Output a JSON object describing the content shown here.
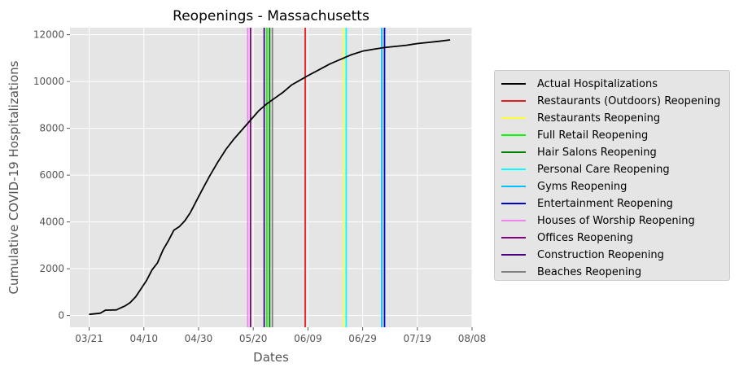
{
  "chart_data": {
    "type": "line",
    "title": "Reopenings - Massachusetts",
    "xlabel": "Dates",
    "ylabel": "Cumulative COVID-19 Hospitalizations",
    "x_ticks": [
      "03/21",
      "04/10",
      "04/30",
      "05/20",
      "06/09",
      "06/29",
      "07/19",
      "08/08"
    ],
    "x_range": [
      "2020-03-14",
      "2020-08-08"
    ],
    "y_ticks": [
      0,
      2000,
      4000,
      6000,
      8000,
      10000,
      12000
    ],
    "ylim": [
      -500,
      12300
    ],
    "grid": true,
    "legend_position": "right",
    "series": [
      {
        "name": "Actual Hospitalizations",
        "color": "#000000",
        "x": [
          "2020-03-21",
          "2020-03-25",
          "2020-03-27",
          "2020-03-28",
          "2020-03-31",
          "2020-04-01",
          "2020-04-03",
          "2020-04-05",
          "2020-04-07",
          "2020-04-09",
          "2020-04-11",
          "2020-04-13",
          "2020-04-15",
          "2020-04-17",
          "2020-04-19",
          "2020-04-21",
          "2020-04-23",
          "2020-04-25",
          "2020-04-27",
          "2020-04-29",
          "2020-05-01",
          "2020-05-04",
          "2020-05-07",
          "2020-05-10",
          "2020-05-13",
          "2020-05-16",
          "2020-05-19",
          "2020-05-22",
          "2020-05-25",
          "2020-05-28",
          "2020-05-31",
          "2020-06-03",
          "2020-06-06",
          "2020-06-09",
          "2020-06-13",
          "2020-06-17",
          "2020-06-21",
          "2020-06-25",
          "2020-06-29",
          "2020-07-03",
          "2020-07-07",
          "2020-07-11",
          "2020-07-15",
          "2020-07-19",
          "2020-07-23",
          "2020-07-27",
          "2020-07-31"
        ],
        "y": [
          50,
          100,
          230,
          230,
          240,
          300,
          400,
          550,
          800,
          1150,
          1500,
          1950,
          2250,
          2800,
          3200,
          3650,
          3800,
          4050,
          4400,
          4850,
          5300,
          5950,
          6550,
          7100,
          7550,
          7950,
          8350,
          8750,
          9050,
          9300,
          9550,
          9850,
          10050,
          10250,
          10500,
          10750,
          10950,
          11150,
          11300,
          11380,
          11450,
          11500,
          11550,
          11620,
          11670,
          11720,
          11780
        ]
      }
    ],
    "events": [
      {
        "name": "Restaurants (Outdoors) Reopening",
        "date": "2020-06-08",
        "color": "#e41a1c"
      },
      {
        "name": "Restaurants Reopening",
        "date": "2020-06-22",
        "color": "#ffff33"
      },
      {
        "name": "Full Retail Reopening",
        "date": "2020-05-25",
        "color": "#00ff00"
      },
      {
        "name": "Hair Salons Reopening",
        "date": "2020-05-26",
        "color": "#008000"
      },
      {
        "name": "Personal Care Reopening",
        "date": "2020-06-23",
        "color": "#00ffff"
      },
      {
        "name": "Gyms Reopening",
        "date": "2020-07-06",
        "color": "#00bfff"
      },
      {
        "name": "Entertainment Reopening",
        "date": "2020-07-07",
        "color": "#0000cd"
      },
      {
        "name": "Houses of Worship Reopening",
        "date": "2020-05-18",
        "color": "#ee82ee"
      },
      {
        "name": "Offices Reopening",
        "date": "2020-05-19",
        "color": "#800080"
      },
      {
        "name": "Construction Reopening",
        "date": "2020-05-24",
        "color": "#4b0082"
      },
      {
        "name": "Beaches Reopening",
        "date": "2020-05-27",
        "color": "#808080"
      }
    ]
  },
  "legend": {
    "items": [
      {
        "label": "Actual Hospitalizations",
        "color": "#000000"
      },
      {
        "label": "Restaurants (Outdoors) Reopening",
        "color": "#e41a1c"
      },
      {
        "label": "Restaurants Reopening",
        "color": "#ffff33"
      },
      {
        "label": "Full Retail Reopening",
        "color": "#00ff00"
      },
      {
        "label": "Hair Salons Reopening",
        "color": "#008000"
      },
      {
        "label": "Personal Care Reopening",
        "color": "#00ffff"
      },
      {
        "label": "Gyms Reopening",
        "color": "#00bfff"
      },
      {
        "label": "Entertainment Reopening",
        "color": "#0000cd"
      },
      {
        "label": "Houses of Worship Reopening",
        "color": "#ee82ee"
      },
      {
        "label": "Offices Reopening",
        "color": "#800080"
      },
      {
        "label": "Construction Reopening",
        "color": "#4b0082"
      },
      {
        "label": "Beaches Reopening",
        "color": "#808080"
      }
    ]
  }
}
